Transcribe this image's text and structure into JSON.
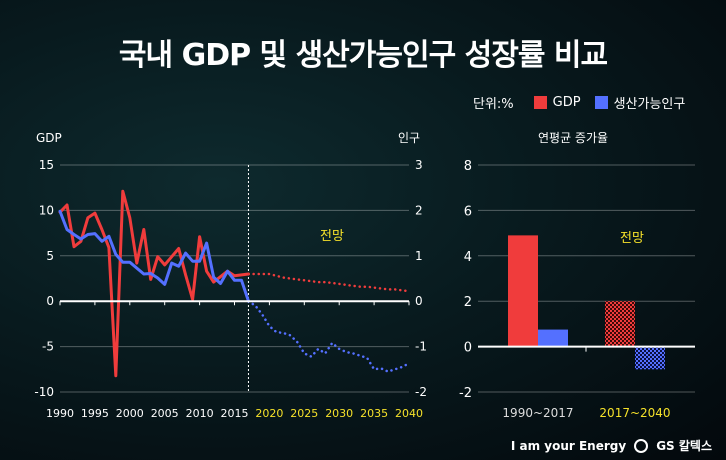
{
  "title": "국내 GDP 및 생산가능인구 성장률 비교",
  "legend": {
    "unit": "단위:%",
    "gdp": "GDP",
    "pop": "생산가능인구"
  },
  "colors": {
    "gdp": "#f03c3c",
    "pop": "#5470ff",
    "forecast_text": "#f5e12a",
    "axis": "#ffffff"
  },
  "footer": {
    "slogan": "I am your Energy",
    "brand": "GS 칼텍스"
  },
  "chart_data": [
    {
      "type": "line",
      "left_axis_label": "GDP",
      "right_axis_label": "인구",
      "xlim": [
        1990,
        2040
      ],
      "ylim_left": [
        -10,
        15
      ],
      "ylim_right": [
        -2,
        3
      ],
      "x_ticks": [
        1990,
        1995,
        2000,
        2005,
        2010,
        2015,
        2020,
        2025,
        2030,
        2035,
        2040
      ],
      "y_ticks_left": [
        15,
        10,
        5,
        0,
        -5,
        -10
      ],
      "y_ticks_right": [
        3,
        2,
        1,
        0,
        -1,
        -2
      ],
      "forecast_label": "전망",
      "forecast_start": 2017,
      "grid": true,
      "series": [
        {
          "name": "GDP",
          "axis": "left",
          "x": [
            1990,
            1991,
            1992,
            1993,
            1994,
            1995,
            1996,
            1997,
            1998,
            1999,
            2000,
            2001,
            2002,
            2003,
            2004,
            2005,
            2006,
            2007,
            2008,
            2009,
            2010,
            2011,
            2012,
            2013,
            2014,
            2015,
            2016,
            2017
          ],
          "values": [
            9.8,
            10.6,
            6.0,
            6.6,
            9.2,
            9.7,
            7.9,
            5.9,
            -8.2,
            12.1,
            9.2,
            4.2,
            7.9,
            2.4,
            4.9,
            4.0,
            4.9,
            5.8,
            2.9,
            0.2,
            7.1,
            3.3,
            2.1,
            2.7,
            3.3,
            2.8,
            2.9,
            3.0
          ]
        },
        {
          "name": "GDP forecast",
          "axis": "left",
          "x": [
            2017,
            2018,
            2019,
            2020,
            2021,
            2022,
            2023,
            2024,
            2025,
            2026,
            2027,
            2028,
            2029,
            2030,
            2031,
            2032,
            2033,
            2034,
            2035,
            2036,
            2037,
            2038,
            2039,
            2040
          ],
          "values": [
            3.0,
            3.0,
            3.0,
            3.0,
            2.8,
            2.6,
            2.5,
            2.4,
            2.3,
            2.2,
            2.1,
            2.1,
            2.0,
            1.9,
            1.8,
            1.7,
            1.6,
            1.6,
            1.5,
            1.4,
            1.3,
            1.3,
            1.2,
            1.1
          ]
        },
        {
          "name": "생산가능인구",
          "axis": "right",
          "x": [
            1990,
            1991,
            1992,
            1993,
            1994,
            1995,
            1996,
            1997,
            1998,
            1999,
            2000,
            2001,
            2002,
            2003,
            2004,
            2005,
            2006,
            2007,
            2008,
            2009,
            2010,
            2011,
            2012,
            2013,
            2014,
            2015,
            2016,
            2017
          ],
          "values": [
            1.98,
            1.58,
            1.47,
            1.37,
            1.47,
            1.49,
            1.32,
            1.43,
            1.03,
            0.86,
            0.86,
            0.73,
            0.6,
            0.61,
            0.51,
            0.37,
            0.84,
            0.77,
            1.06,
            0.88,
            0.88,
            1.28,
            0.53,
            0.39,
            0.66,
            0.46,
            0.46,
            0.0
          ]
        },
        {
          "name": "생산가능인구 forecast",
          "axis": "right",
          "x": [
            2017,
            2018,
            2019,
            2020,
            2021,
            2022,
            2023,
            2024,
            2025,
            2026,
            2027,
            2028,
            2029,
            2030,
            2031,
            2032,
            2033,
            2034,
            2035,
            2036,
            2037,
            2038,
            2039,
            2040
          ],
          "values": [
            0.0,
            -0.1,
            -0.3,
            -0.55,
            -0.68,
            -0.7,
            -0.75,
            -0.9,
            -1.15,
            -1.22,
            -1.05,
            -1.15,
            -0.92,
            -1.05,
            -1.12,
            -1.15,
            -1.2,
            -1.25,
            -1.5,
            -1.48,
            -1.55,
            -1.5,
            -1.45,
            -1.37
          ]
        }
      ]
    },
    {
      "type": "bar",
      "title": "연평균 증가율",
      "ylim": [
        -2,
        8
      ],
      "y_ticks": [
        8,
        6,
        4,
        2,
        0,
        -2
      ],
      "categories": [
        "1990~2017",
        "2017~2040"
      ],
      "forecast_label": "전망",
      "series": [
        {
          "name": "GDP",
          "values": [
            4.9,
            2.0
          ]
        },
        {
          "name": "생산가능인구",
          "values": [
            0.75,
            -1.0
          ]
        }
      ]
    }
  ]
}
